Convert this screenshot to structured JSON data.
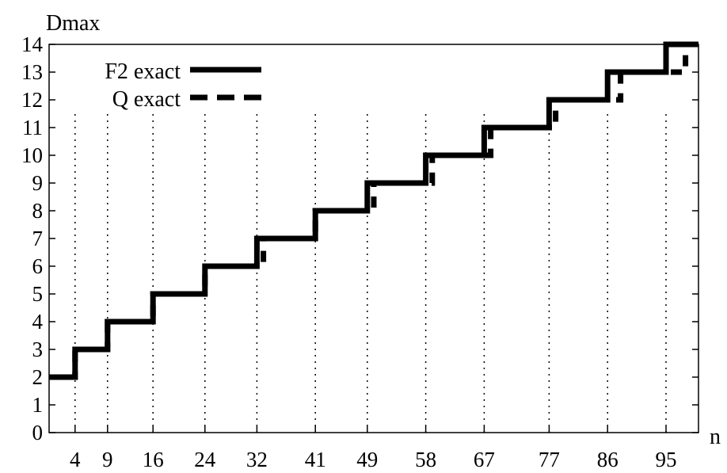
{
  "chart_data": {
    "type": "line",
    "title": "",
    "xlabel": "n",
    "ylabel": "Dmax",
    "xlim": [
      0,
      100
    ],
    "ylim": [
      0,
      14
    ],
    "grid": {
      "x": "dotted",
      "y": false
    },
    "xticks": [
      4,
      9,
      16,
      24,
      32,
      41,
      49,
      58,
      67,
      77,
      86,
      95
    ],
    "yticks": [
      0,
      1,
      2,
      3,
      4,
      5,
      6,
      7,
      8,
      9,
      10,
      11,
      12,
      13,
      14
    ],
    "legend": {
      "placement": "top-left"
    },
    "series": [
      {
        "name": "F2 exact",
        "style": "solid",
        "color": "#000000",
        "x": [
          0,
          4,
          4,
          9,
          9,
          16,
          16,
          24,
          24,
          32,
          32,
          41,
          41,
          49,
          49,
          58,
          58,
          67,
          67,
          77,
          77,
          86,
          86,
          95,
          95,
          100
        ],
        "y": [
          2,
          2,
          3,
          3,
          4,
          4,
          5,
          5,
          6,
          6,
          7,
          7,
          8,
          8,
          9,
          9,
          10,
          10,
          11,
          11,
          12,
          12,
          13,
          13,
          14,
          14
        ]
      },
      {
        "name": "Q exact",
        "style": "dashed",
        "color": "#000000",
        "x": [
          0,
          4,
          4,
          9,
          9,
          16,
          16,
          24,
          24,
          33,
          33,
          41,
          41,
          50,
          50,
          59,
          59,
          68,
          68,
          78,
          78,
          88,
          88,
          98,
          98,
          100
        ],
        "y": [
          2,
          2,
          3,
          3,
          4,
          4,
          5,
          5,
          6,
          6,
          7,
          7,
          8,
          8,
          9,
          9,
          10,
          10,
          11,
          11,
          12,
          12,
          13,
          13,
          14,
          14
        ]
      }
    ]
  }
}
